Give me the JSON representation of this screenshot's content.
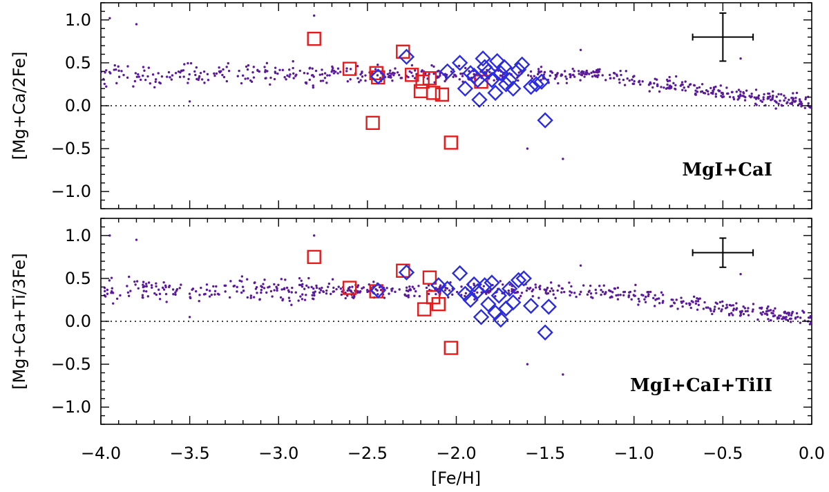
{
  "chart_data": {
    "type": "scatter",
    "xlabel": "[Fe/H]",
    "xlim": [
      -4.0,
      0.0
    ],
    "xticks": [
      "−4.0",
      "−3.5",
      "−3.0",
      "−2.5",
      "−2.0",
      "−1.5",
      "−1.0",
      "−0.5",
      "0.0"
    ],
    "xtick_values": [
      -4.0,
      -3.5,
      -3.0,
      -2.5,
      -2.0,
      -1.5,
      -1.0,
      -0.5,
      0.0
    ],
    "panels": [
      {
        "ylabel": "[Mg+Ca/2Fe]",
        "label": "MgI+CaI",
        "ylim": [
          -1.2,
          1.2
        ],
        "yticks": [
          "1.0",
          "0.5",
          "0.0",
          "−0.5",
          "−1.0"
        ],
        "ytick_values": [
          1.0,
          0.5,
          0.0,
          -0.5,
          -1.0
        ],
        "zero_line": 0.0,
        "error_bar": {
          "x": -0.5,
          "y": 0.8,
          "xerr": 0.17,
          "yerr": 0.28
        },
        "squares": [
          [
            -2.8,
            0.78
          ],
          [
            -2.6,
            0.43
          ],
          [
            -2.45,
            0.38
          ],
          [
            -2.44,
            0.33
          ],
          [
            -2.3,
            0.63
          ],
          [
            -2.25,
            0.36
          ],
          [
            -2.2,
            0.17
          ],
          [
            -2.19,
            0.28
          ],
          [
            -2.15,
            0.32
          ],
          [
            -2.13,
            0.15
          ],
          [
            -2.08,
            0.13
          ],
          [
            -2.47,
            -0.2
          ],
          [
            -2.03,
            -0.43
          ],
          [
            -1.86,
            0.28
          ]
        ],
        "diamonds": [
          [
            -2.44,
            0.34
          ],
          [
            -2.28,
            0.57
          ],
          [
            -2.05,
            0.4
          ],
          [
            -1.98,
            0.5
          ],
          [
            -1.95,
            0.2
          ],
          [
            -1.9,
            0.35
          ],
          [
            -1.88,
            0.3
          ],
          [
            -1.85,
            0.55
          ],
          [
            -1.84,
            0.45
          ],
          [
            -1.82,
            0.4
          ],
          [
            -1.8,
            0.3
          ],
          [
            -1.78,
            0.15
          ],
          [
            -1.77,
            0.52
          ],
          [
            -1.75,
            0.38
          ],
          [
            -1.72,
            0.25
          ],
          [
            -1.7,
            0.3
          ],
          [
            -1.68,
            0.2
          ],
          [
            -1.65,
            0.42
          ],
          [
            -1.63,
            0.48
          ],
          [
            -1.58,
            0.22
          ],
          [
            -1.55,
            0.25
          ],
          [
            -1.52,
            0.28
          ],
          [
            -1.5,
            -0.17
          ],
          [
            -1.87,
            0.07
          ],
          [
            -1.92,
            0.38
          ],
          [
            -1.73,
            0.45
          ]
        ]
      },
      {
        "ylabel": "[Mg+Ca+Ti/3Fe]",
        "label": "MgI+CaI+TiII",
        "ylim": [
          -1.2,
          1.2
        ],
        "yticks": [
          "1.0",
          "0.5",
          "0.0",
          "−0.5",
          "−1.0"
        ],
        "ytick_values": [
          1.0,
          0.5,
          0.0,
          -0.5,
          -1.0
        ],
        "zero_line": 0.0,
        "error_bar": {
          "x": -0.5,
          "y": 0.8,
          "xerr": 0.17,
          "yerr": 0.17
        },
        "squares": [
          [
            -2.8,
            0.75
          ],
          [
            -2.6,
            0.39
          ],
          [
            -2.45,
            0.35
          ],
          [
            -2.3,
            0.59
          ],
          [
            -2.18,
            0.14
          ],
          [
            -2.15,
            0.51
          ],
          [
            -2.13,
            0.28
          ],
          [
            -2.1,
            0.2
          ],
          [
            -2.03,
            -0.31
          ]
        ],
        "diamonds": [
          [
            -2.44,
            0.36
          ],
          [
            -2.28,
            0.57
          ],
          [
            -2.1,
            0.42
          ],
          [
            -2.05,
            0.38
          ],
          [
            -1.98,
            0.56
          ],
          [
            -1.95,
            0.32
          ],
          [
            -1.92,
            0.25
          ],
          [
            -1.88,
            0.35
          ],
          [
            -1.86,
            0.05
          ],
          [
            -1.84,
            0.42
          ],
          [
            -1.82,
            0.2
          ],
          [
            -1.8,
            0.45
          ],
          [
            -1.78,
            0.1
          ],
          [
            -1.76,
            0.3
          ],
          [
            -1.75,
            0.02
          ],
          [
            -1.72,
            0.15
          ],
          [
            -1.7,
            0.38
          ],
          [
            -1.68,
            0.22
          ],
          [
            -1.65,
            0.48
          ],
          [
            -1.62,
            0.5
          ],
          [
            -1.58,
            0.18
          ],
          [
            -1.5,
            -0.13
          ],
          [
            -1.48,
            0.17
          ],
          [
            -1.9,
            0.43
          ]
        ]
      }
    ],
    "colors": {
      "field_stars": "#5a1a9a",
      "squares": "#e41a1c",
      "diamonds": "#2b2be0"
    }
  }
}
